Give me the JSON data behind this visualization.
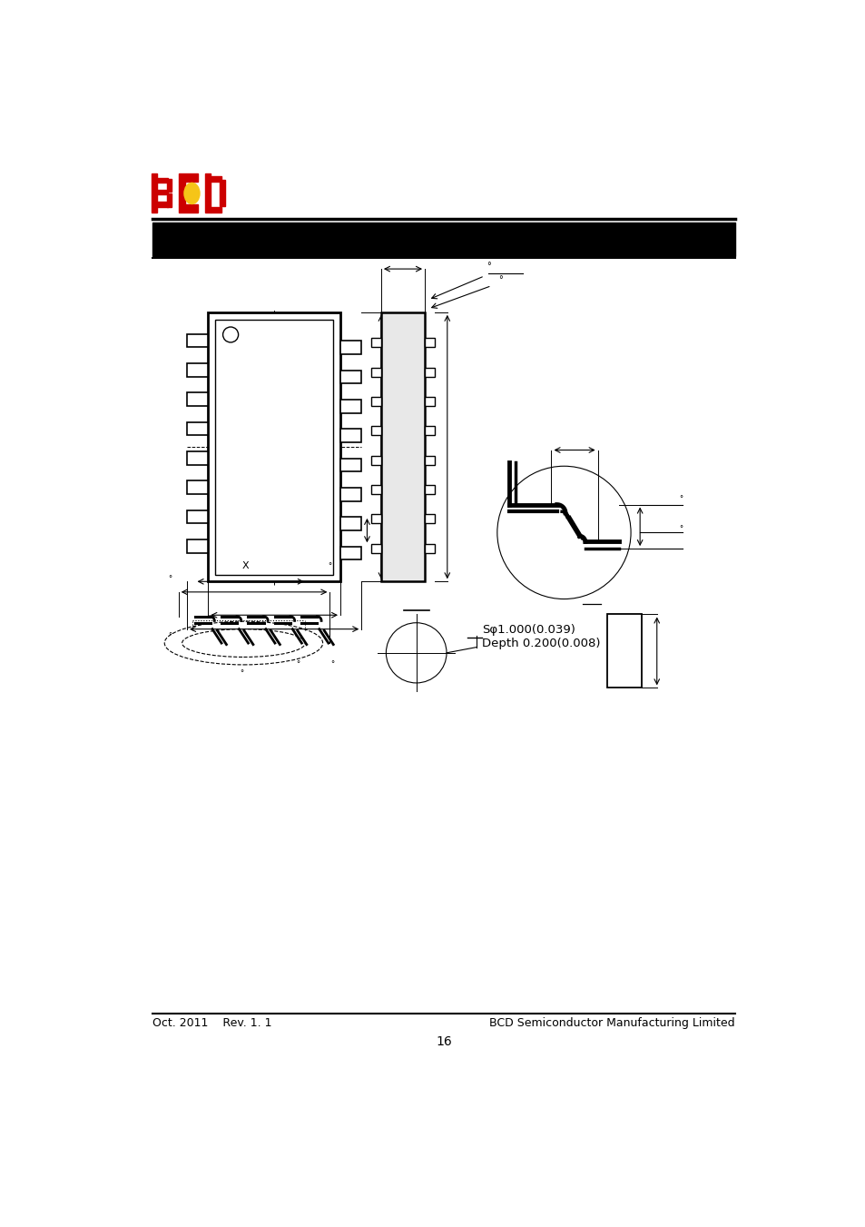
{
  "bg_color": "#ffffff",
  "logo_red": "#cc0000",
  "logo_yellow": "#f5c518",
  "header_bar_color": "#000000",
  "footer_left": "Oct. 2011    Rev. 1. 1",
  "footer_right": "BCD Semiconductor Manufacturing Limited",
  "page_number": "16",
  "annotation1": "Sφ1.000(0.039)",
  "annotation2": "Depth 0.200(0.008)"
}
